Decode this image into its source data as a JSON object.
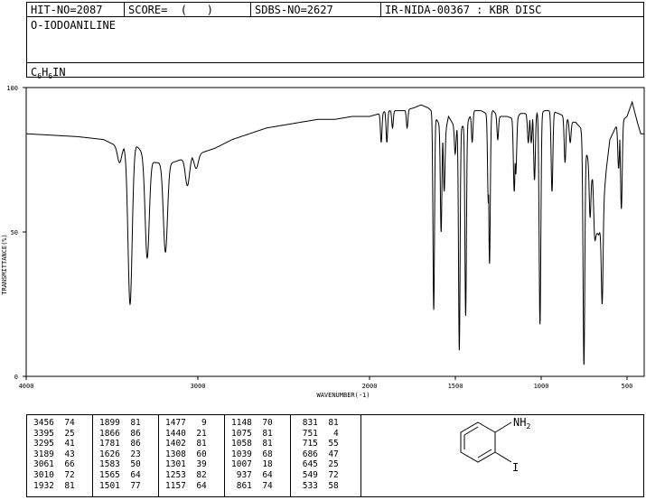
{
  "header": {
    "hit_no": "HIT-NO=2087",
    "score": "SCORE=  (   )",
    "sdbs_no": "SDBS-NO=2627",
    "ir_info": "IR-NIDA-00367 : KBR DISC",
    "compound_name": "O-IODOANILINE",
    "formula": {
      "c": "C",
      "c_n": "6",
      "h": "H",
      "h_n": "6",
      "rest": "IN"
    }
  },
  "chart_data": {
    "type": "line",
    "title": "",
    "xlabel": "WAVENUMBER(-1)",
    "ylabel": "TRANSMITTANCE(%)",
    "xlim": [
      4000,
      400
    ],
    "ylim": [
      0,
      100
    ],
    "x_ticks": [
      4000,
      3000,
      2000,
      1500,
      1000,
      500
    ],
    "x_tick_labels": [
      "4000",
      "3000",
      "2000",
      "1500",
      "1000",
      "500"
    ],
    "y_ticks": [
      0,
      50,
      100
    ],
    "y_tick_labels": [
      "0",
      "50",
      "100"
    ],
    "baseline": [
      [
        4000,
        84
      ],
      [
        3700,
        83
      ],
      [
        3550,
        82
      ],
      [
        3480,
        80
      ],
      [
        3400,
        79
      ],
      [
        3360,
        80
      ],
      [
        3300,
        76
      ],
      [
        3250,
        74
      ],
      [
        3150,
        74
      ],
      [
        3050,
        76
      ],
      [
        3000,
        77
      ],
      [
        2900,
        79
      ],
      [
        2800,
        82
      ],
      [
        2700,
        84
      ],
      [
        2600,
        86
      ],
      [
        2500,
        87
      ],
      [
        2400,
        88
      ],
      [
        2300,
        89
      ],
      [
        2200,
        89
      ],
      [
        2100,
        90
      ],
      [
        2000,
        90
      ],
      [
        1940,
        91
      ],
      [
        1900,
        92
      ],
      [
        1800,
        92
      ],
      [
        1740,
        93
      ],
      [
        1700,
        94
      ],
      [
        1660,
        93
      ],
      [
        1640,
        92
      ],
      [
        1600,
        88
      ],
      [
        1560,
        84
      ],
      [
        1540,
        90
      ],
      [
        1500,
        86
      ],
      [
        1470,
        86
      ],
      [
        1430,
        88
      ],
      [
        1400,
        92
      ],
      [
        1350,
        92
      ],
      [
        1320,
        91
      ],
      [
        1300,
        91
      ],
      [
        1280,
        92
      ],
      [
        1250,
        90
      ],
      [
        1200,
        90
      ],
      [
        1150,
        89
      ],
      [
        1120,
        91
      ],
      [
        1080,
        91
      ],
      [
        1050,
        92
      ],
      [
        1010,
        91
      ],
      [
        980,
        92
      ],
      [
        940,
        92
      ],
      [
        900,
        91
      ],
      [
        860,
        90
      ],
      [
        830,
        88
      ],
      [
        800,
        88
      ],
      [
        770,
        86
      ],
      [
        750,
        80
      ],
      [
        720,
        74
      ],
      [
        700,
        68
      ],
      [
        690,
        56
      ],
      [
        680,
        50
      ],
      [
        665,
        49
      ],
      [
        650,
        52
      ],
      [
        620,
        72
      ],
      [
        600,
        82
      ],
      [
        560,
        87
      ],
      [
        540,
        88
      ],
      [
        500,
        90
      ],
      [
        470,
        95
      ],
      [
        440,
        88
      ],
      [
        420,
        84
      ],
      [
        400,
        84
      ]
    ],
    "peaks": [
      {
        "x": 3456,
        "t": 74
      },
      {
        "x": 3395,
        "t": 25
      },
      {
        "x": 3295,
        "t": 41
      },
      {
        "x": 3189,
        "t": 43
      },
      {
        "x": 3061,
        "t": 66
      },
      {
        "x": 3010,
        "t": 72
      },
      {
        "x": 1932,
        "t": 81
      },
      {
        "x": 1899,
        "t": 81
      },
      {
        "x": 1866,
        "t": 86
      },
      {
        "x": 1781,
        "t": 86
      },
      {
        "x": 1626,
        "t": 23
      },
      {
        "x": 1583,
        "t": 50
      },
      {
        "x": 1565,
        "t": 64
      },
      {
        "x": 1501,
        "t": 77
      },
      {
        "x": 1477,
        "t": 9
      },
      {
        "x": 1440,
        "t": 21
      },
      {
        "x": 1402,
        "t": 81
      },
      {
        "x": 1308,
        "t": 60
      },
      {
        "x": 1301,
        "t": 39
      },
      {
        "x": 1253,
        "t": 82
      },
      {
        "x": 1157,
        "t": 64
      },
      {
        "x": 1148,
        "t": 70
      },
      {
        "x": 1075,
        "t": 81
      },
      {
        "x": 1058,
        "t": 81
      },
      {
        "x": 1039,
        "t": 68
      },
      {
        "x": 1007,
        "t": 18
      },
      {
        "x": 937,
        "t": 64
      },
      {
        "x": 861,
        "t": 74
      },
      {
        "x": 831,
        "t": 81
      },
      {
        "x": 751,
        "t": 4
      },
      {
        "x": 715,
        "t": 55
      },
      {
        "x": 686,
        "t": 47
      },
      {
        "x": 645,
        "t": 25
      },
      {
        "x": 549,
        "t": 72
      },
      {
        "x": 533,
        "t": 58
      }
    ]
  },
  "peak_table": [
    [
      "3456  74",
      "3395  25",
      "3295  41",
      "3189  43",
      "3061  66",
      "3010  72",
      "1932  81"
    ],
    [
      "1899  81",
      "1866  86",
      "1781  86",
      "1626  23",
      "1583  50",
      "1565  64",
      "1501  77"
    ],
    [
      "1477   9",
      "1440  21",
      "1402  81",
      "1308  60",
      "1301  39",
      "1253  82",
      "1157  64"
    ],
    [
      "1148  70",
      "1075  81",
      "1058  81",
      "1039  68",
      "1007  18",
      " 937  64",
      " 861  74"
    ],
    [
      " 831  81",
      " 751   4",
      " 715  55",
      " 686  47",
      " 645  25",
      " 549  72",
      " 533  58"
    ]
  ],
  "structure": {
    "amine_label": "NH",
    "amine_sub": "2",
    "iodo_label": "I"
  }
}
